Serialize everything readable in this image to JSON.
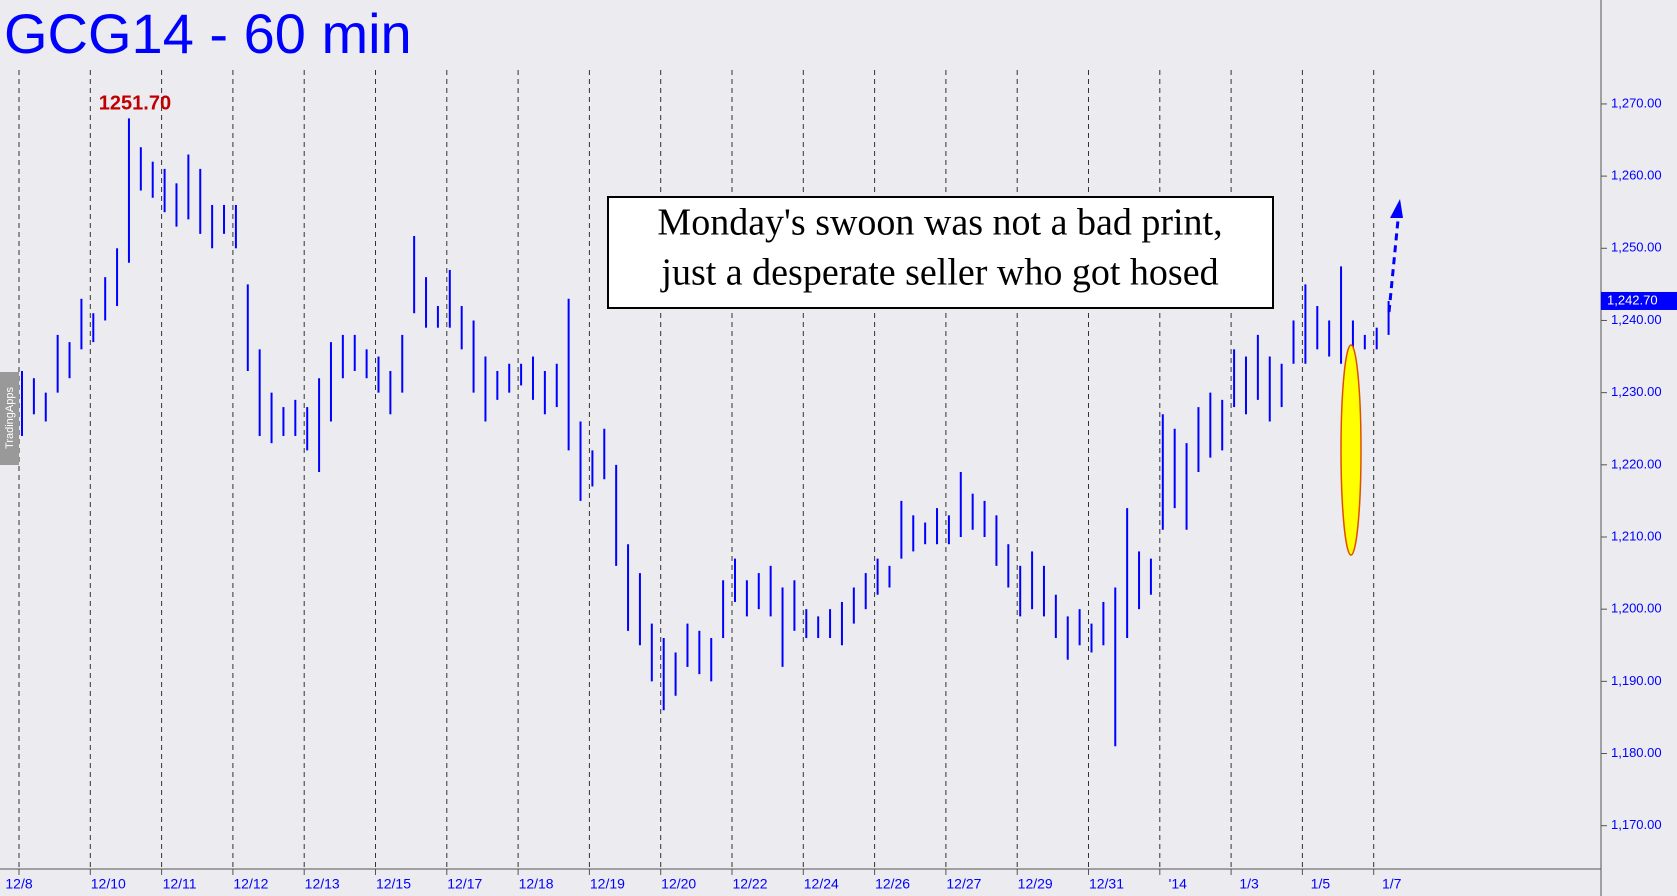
{
  "chart_data": {
    "type": "range",
    "title": "GCG14 - 60 min",
    "watermark": "TradingApps",
    "annotation_lines": [
      "Monday's swoon was not a bad print,",
      "just a desperate seller who got hosed"
    ],
    "peak_label": "1251.70",
    "last_price": {
      "value": 1242.7,
      "label": "1,242.70"
    },
    "color": "#0000ff",
    "categories": [
      "12/8",
      "12/10",
      "12/11",
      "12/12",
      "12/13",
      "12/15",
      "12/17",
      "12/18",
      "12/19",
      "12/20",
      "12/22",
      "12/24",
      "12/26",
      "12/27",
      "12/29",
      "12/31",
      "'14",
      "1/3",
      "1/5",
      "1/7"
    ],
    "highs": [
      1233,
      1232,
      1230,
      1238,
      1237,
      1243,
      1241,
      1246,
      1250,
      1268,
      1264,
      1262,
      1261,
      1259,
      1263,
      1261,
      1256,
      1256,
      1256,
      1245,
      1236,
      1230,
      1228,
      1229,
      1228,
      1232,
      1237,
      1238,
      1238,
      1236,
      1235,
      1233,
      1238,
      1251.7,
      1246,
      1242,
      1247,
      1242,
      1240,
      1235,
      1233,
      1234,
      1234,
      1235,
      1233,
      1234,
      1243,
      1226,
      1222,
      1225,
      1220,
      1209,
      1205,
      1198,
      1196,
      1194,
      1198,
      1197,
      1196,
      1204,
      1207,
      1204,
      1205,
      1206,
      1203,
      1204,
      1200,
      1199,
      1200,
      1201,
      1203,
      1205,
      1207,
      1206,
      1215,
      1213,
      1212,
      1214,
      1213,
      1219,
      1216,
      1215,
      1213,
      1209,
      1206,
      1208,
      1206,
      1202,
      1199,
      1200,
      1198,
      1201,
      1203,
      1214,
      1208,
      1207,
      1227,
      1225,
      1223,
      1228,
      1230,
      1229,
      1236,
      1235,
      1238,
      1235,
      1234,
      1240,
      1245,
      1242,
      1240,
      1247.5,
      1240,
      1238,
      1239,
      1242.7
    ],
    "lows": [
      1224,
      1227,
      1226,
      1230,
      1232,
      1236,
      1237,
      1240,
      1242,
      1248,
      1258,
      1257,
      1255,
      1253,
      1254,
      1252,
      1250,
      1252,
      1250,
      1233,
      1224,
      1223,
      1224,
      1224,
      1222,
      1219,
      1226,
      1232,
      1233,
      1232,
      1230,
      1227,
      1230,
      1241,
      1239,
      1239,
      1239,
      1236,
      1230,
      1226,
      1229,
      1230,
      1231,
      1229,
      1227,
      1228,
      1222,
      1215,
      1217,
      1218,
      1206,
      1197,
      1195,
      1190,
      1186,
      1188,
      1192,
      1191,
      1190,
      1196,
      1201,
      1199,
      1200,
      1199,
      1192,
      1197,
      1196,
      1196,
      1196,
      1195,
      1198,
      1200,
      1202,
      1203,
      1207,
      1208,
      1209,
      1209,
      1209,
      1210,
      1211,
      1210,
      1206,
      1203,
      1199,
      1200,
      1199,
      1196,
      1193,
      1195,
      1194,
      1195,
      1181,
      1196,
      1200,
      1202,
      1211,
      1214,
      1211,
      1219,
      1221,
      1222,
      1228,
      1227,
      1229,
      1226,
      1228,
      1234,
      1234,
      1236,
      1235,
      1234,
      1212,
      1236,
      1236,
      1238
    ],
    "ylim": [
      1164.0,
      1284.4
    ],
    "yticks": [
      {
        "value": 1170,
        "label": "1,170.00"
      },
      {
        "value": 1180,
        "label": "1,180.00"
      },
      {
        "value": 1190,
        "label": "1,190.00"
      },
      {
        "value": 1200,
        "label": "1,200.00"
      },
      {
        "value": 1210,
        "label": "1,210.00"
      },
      {
        "value": 1220,
        "label": "1,220.00"
      },
      {
        "value": 1230,
        "label": "1,230.00"
      },
      {
        "value": 1240,
        "label": "1,240.00"
      },
      {
        "value": 1250,
        "label": "1,250.00"
      },
      {
        "value": 1260,
        "label": "1,260.00"
      },
      {
        "value": 1270,
        "label": "1,270.00"
      }
    ],
    "grid": true
  }
}
